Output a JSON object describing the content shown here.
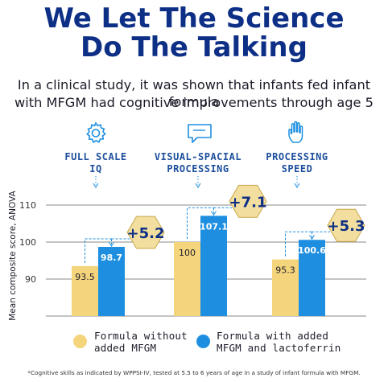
{
  "header": {
    "title_line1": "We Let The Science",
    "title_line2": "Do The Talking",
    "subtitle_line1": "In a clinical study, it was shown that infants fed infant formula",
    "subtitle_line2": "with MFGM had cognitive improvements through age 5"
  },
  "categories": [
    {
      "line1": "FULL SCALE",
      "line2": "IQ",
      "icon": "gear-icon"
    },
    {
      "line1": "VISUAL-SPACIAL",
      "line2": "PROCESSING",
      "icon": "speech-bubble-icon"
    },
    {
      "line1": "PROCESSING",
      "line2": "SPEED",
      "icon": "hand-icon"
    }
  ],
  "legend": {
    "series1_line1": "Formula without",
    "series1_line2": "added MFGM",
    "series2_line1": "Formula with added",
    "series2_line2": "MFGM and lactoferrin"
  },
  "footnote": "*Cognitive skills as indicated by WPPSI-IV, tested at 5.5 to 6 years of age in a study of infant formula with MFGM.",
  "colors": {
    "title": "#0e2f86",
    "accent_blue": "#1e8fe0",
    "formula_yellow": "#f5d57c",
    "badge_fill": "#f2dfa0",
    "category_text": "#1d4f9c"
  },
  "chart_data": {
    "type": "bar",
    "categories": [
      "FULL SCALE IQ",
      "VISUAL-SPACIAL PROCESSING",
      "PROCESSING SPEED"
    ],
    "series": [
      {
        "name": "Formula without added MFGM",
        "values": [
          93.5,
          100,
          95.3
        ],
        "labels": [
          "93.5",
          "100",
          "95.3"
        ],
        "color": "#f5d57c"
      },
      {
        "name": "Formula with added MFGM and lactoferrin",
        "values": [
          98.7,
          107.1,
          100.6
        ],
        "labels": [
          "98.7",
          "107.1",
          "100.6"
        ],
        "color": "#1e8fe0"
      }
    ],
    "differences": [
      "+5.2",
      "+7.1",
      "+5.3"
    ],
    "ylabel": "Mean composite score, ANOVA",
    "yticks": [
      "90",
      "100",
      "110"
    ],
    "ylim": [
      80,
      110
    ],
    "grid": true
  }
}
